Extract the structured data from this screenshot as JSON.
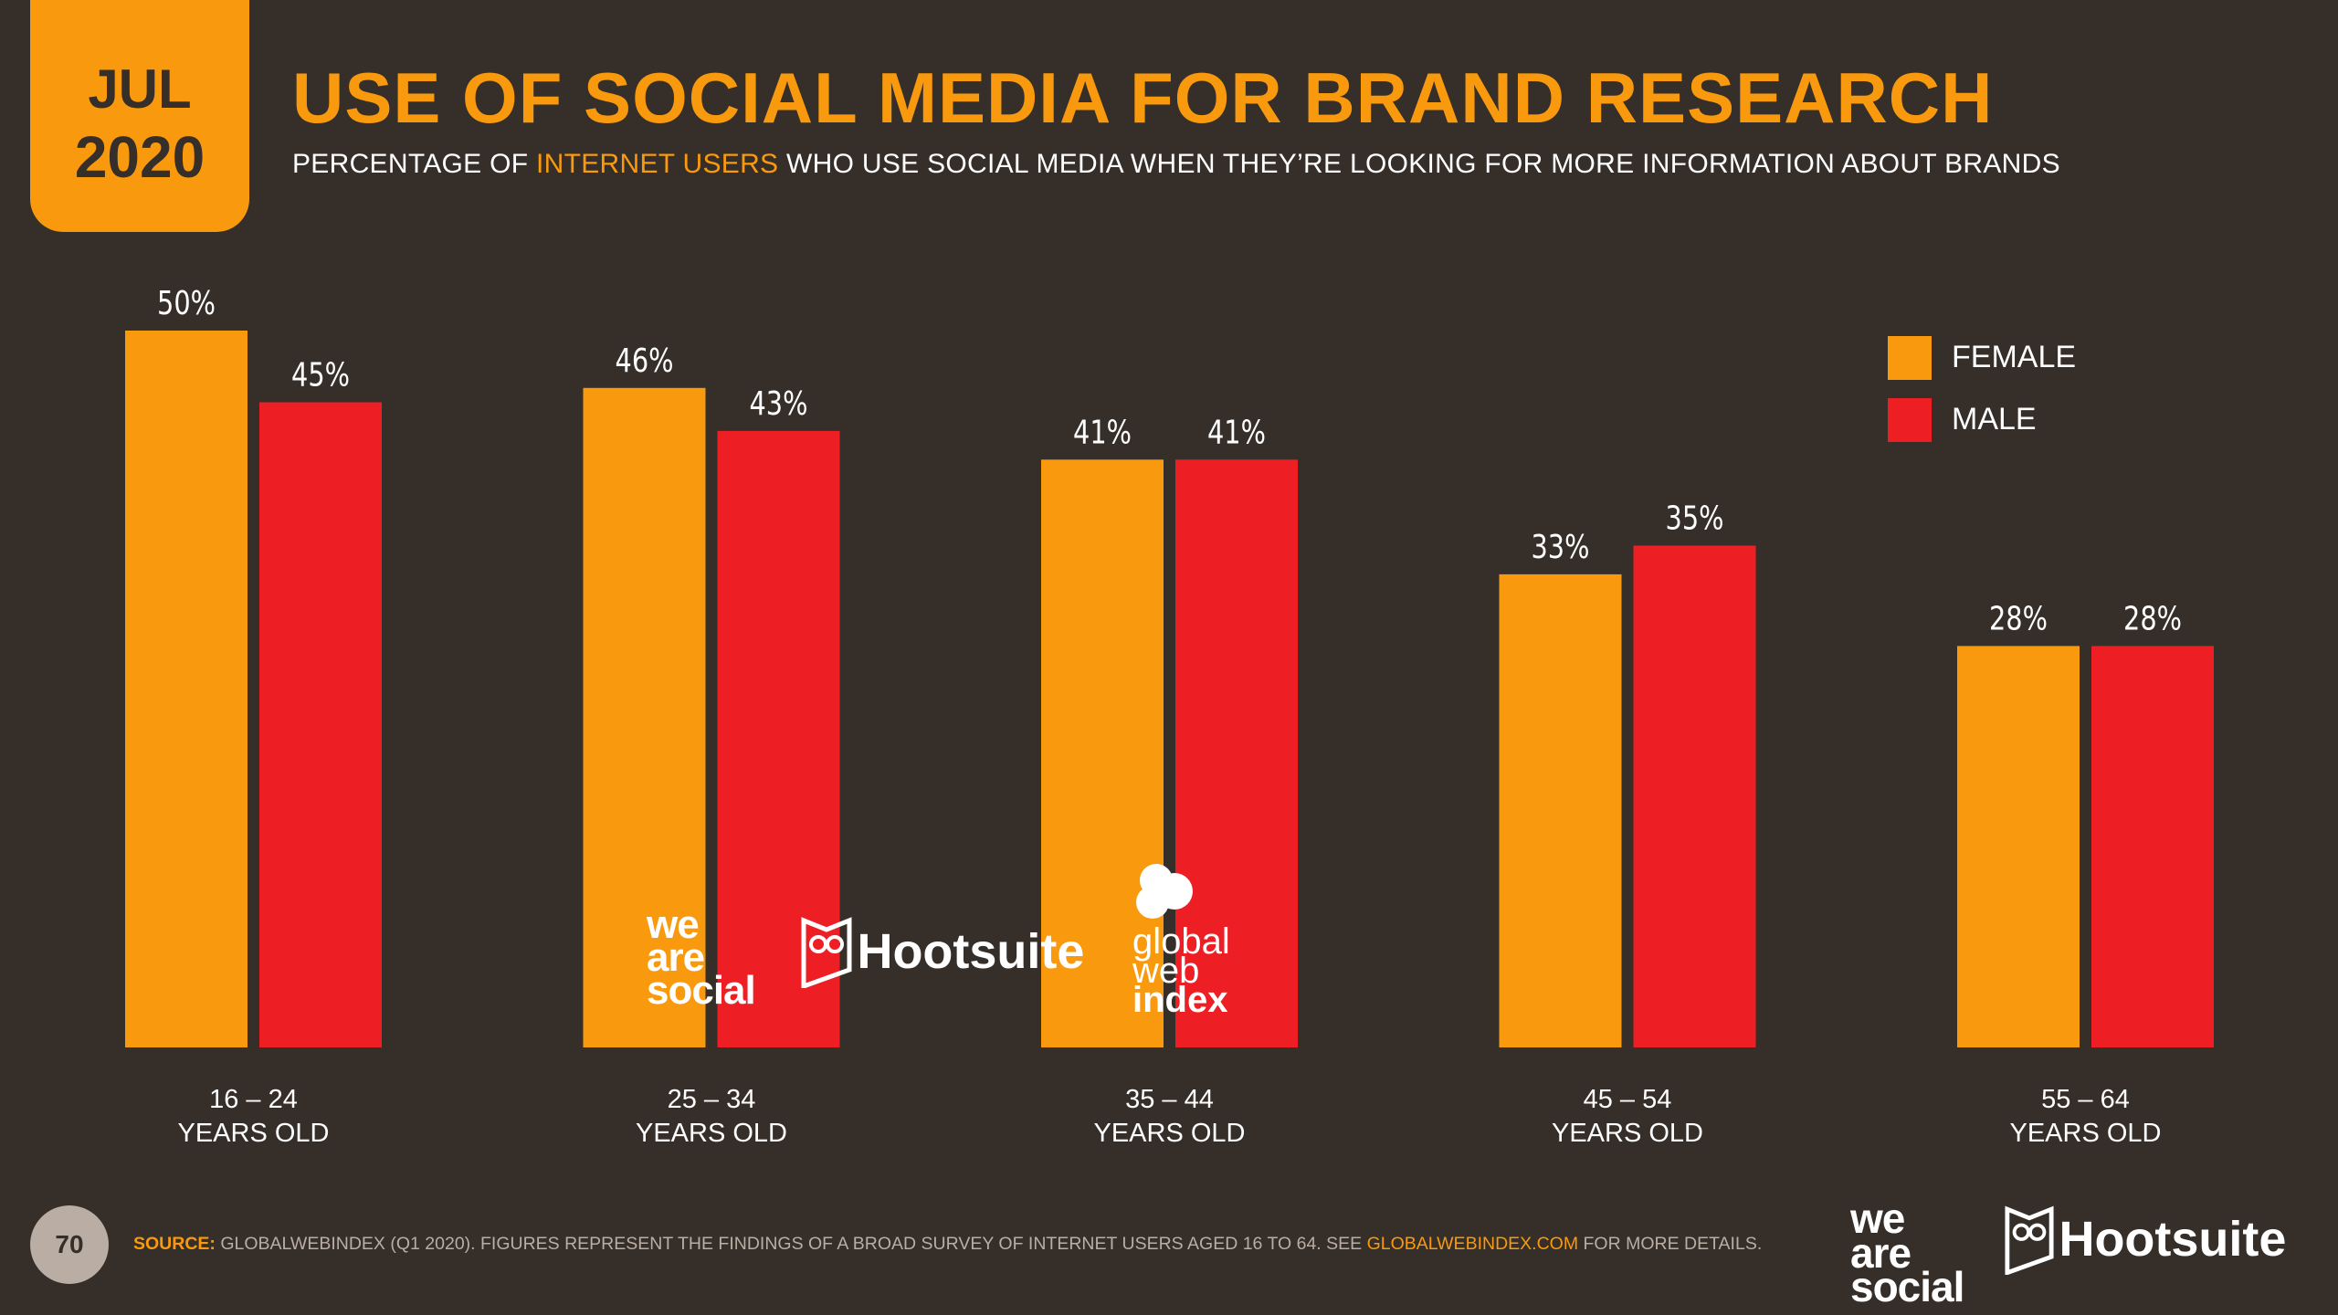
{
  "badge": {
    "month": "JUL",
    "year": "2020"
  },
  "header": {
    "title": "USE OF SOCIAL MEDIA FOR BRAND RESEARCH",
    "subtitle_pre": "PERCENTAGE OF ",
    "subtitle_highlight": "INTERNET USERS",
    "subtitle_post": " WHO USE SOCIAL MEDIA WHEN THEY’RE LOOKING FOR MORE INFORMATION ABOUT BRANDS"
  },
  "legend": [
    {
      "label": "FEMALE",
      "color": "#f99a0e"
    },
    {
      "label": "MALE",
      "color": "#ee1f24"
    }
  ],
  "chart_data": {
    "type": "bar",
    "title": "",
    "xlabel": "",
    "ylabel": "",
    "categories": [
      {
        "line1": "16 – 24",
        "line2": "YEARS OLD"
      },
      {
        "line1": "25 – 34",
        "line2": "YEARS OLD"
      },
      {
        "line1": "35 – 44",
        "line2": "YEARS OLD"
      },
      {
        "line1": "45 – 54",
        "line2": "YEARS OLD"
      },
      {
        "line1": "55 – 64",
        "line2": "YEARS OLD"
      }
    ],
    "series": [
      {
        "name": "FEMALE",
        "color": "#f99a0e",
        "values": [
          50,
          46,
          41,
          33,
          28
        ],
        "labels": [
          "50%",
          "46%",
          "41%",
          "33%",
          "28%"
        ]
      },
      {
        "name": "MALE",
        "color": "#ee1f24",
        "values": [
          45,
          43,
          41,
          35,
          28
        ],
        "labels": [
          "45%",
          "43%",
          "41%",
          "35%",
          "28%"
        ]
      }
    ],
    "ylim": [
      0,
      50
    ],
    "grid": false,
    "legend_position": "top-right"
  },
  "footer": {
    "page_number": "70",
    "source_label": "SOURCE:",
    "source_text": " GLOBALWEBINDEX (Q1 2020). FIGURES REPRESENT THE FINDINGS OF A BROAD SURVEY OF INTERNET USERS AGED 16 TO 64. SEE ",
    "source_link": "GLOBALWEBINDEX.COM",
    "source_end": " FOR MORE DETAILS."
  },
  "logos": {
    "was": [
      "we",
      "are",
      "social"
    ],
    "hootsuite": "Hootsuite",
    "gwi": [
      "global",
      "web",
      "index"
    ]
  }
}
